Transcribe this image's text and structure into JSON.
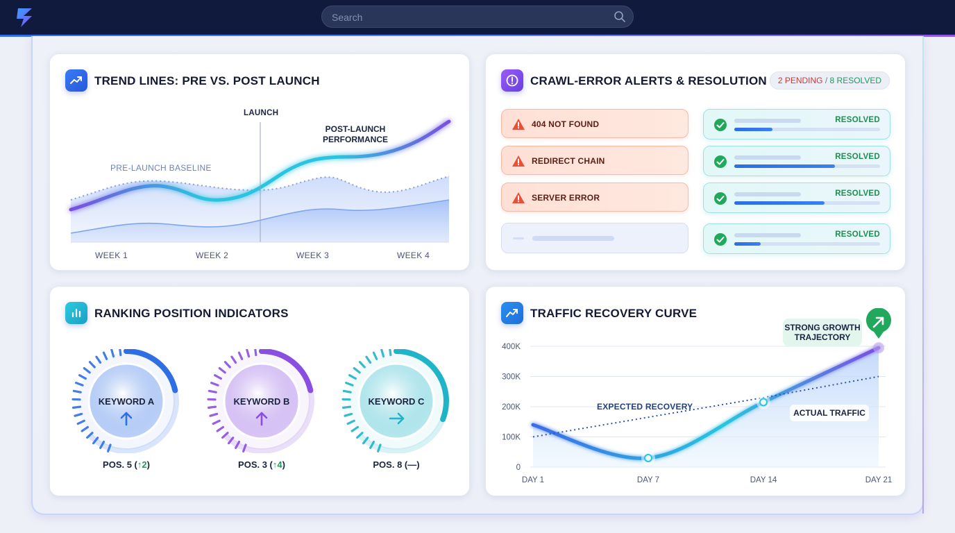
{
  "header": {
    "search_placeholder": "Search"
  },
  "trend": {
    "title": "TREND LINES: PRE VS. POST LAUNCH",
    "launch_label": "LAUNCH",
    "pre_label": "PRE-LAUNCH BASELINE",
    "post_label_line1": "POST-LAUNCH",
    "post_label_line2": "PERFORMANCE",
    "weeks": [
      "WEEK 1",
      "WEEK 2",
      "WEEK 3",
      "WEEK 4"
    ]
  },
  "crawl": {
    "title": "CRAWL-ERROR ALERTS & RESOLUTION",
    "badge_pending": "2 PENDING",
    "badge_sep": " / ",
    "badge_resolved": "8 RESOLVED",
    "errors": [
      {
        "label": "404 NOT FOUND"
      },
      {
        "label": "REDIRECT CHAIN"
      },
      {
        "label": "SERVER ERROR"
      }
    ],
    "resolved": [
      {
        "label": "RESOLVED",
        "progress": 0.26
      },
      {
        "label": "RESOLVED",
        "progress": 0.69
      },
      {
        "label": "RESOLVED",
        "progress": 0.62
      },
      {
        "label": "RESOLVED",
        "progress": 0.18
      }
    ]
  },
  "ranking": {
    "title": "RANKING POSITION INDICATORS",
    "keywords": [
      {
        "name": "KEYWORD A",
        "pos": "POS. 5 (",
        "delta": "↑2",
        "close": ")",
        "trend": "up",
        "level": 0.3,
        "color": "#2f6fe4"
      },
      {
        "name": "KEYWORD B",
        "pos": "POS. 3 (",
        "delta": "↑4",
        "close": ")",
        "trend": "up",
        "level": 0.3,
        "color": "#8a4fe0"
      },
      {
        "name": "KEYWORD C",
        "pos": "POS. 8 (",
        "delta": "—",
        "close": ")",
        "trend": "flat",
        "level": 0.45,
        "color": "#1fb4c8"
      }
    ]
  },
  "traffic": {
    "title": "TRAFFIC RECOVERY CURVE",
    "callout_line1": "STRONG GROWTH",
    "callout_line2": "TRAJECTORY",
    "expected_label": "EXPECTED RECOVERY",
    "actual_label": "ACTUAL TRAFFIC"
  },
  "chart_data": {
    "type": "line",
    "x": [
      "DAY 1",
      "DAY 7",
      "DAY 14",
      "DAY 21"
    ],
    "yticks": [
      "400K",
      "300K",
      "200K",
      "100K",
      "0"
    ],
    "ylim": [
      0,
      400000
    ],
    "series": [
      {
        "name": "ACTUAL TRAFFIC",
        "values": [
          140000,
          30000,
          215000,
          395000
        ]
      },
      {
        "name": "EXPECTED RECOVERY",
        "values": [
          100000,
          165000,
          230000,
          300000
        ]
      }
    ]
  }
}
